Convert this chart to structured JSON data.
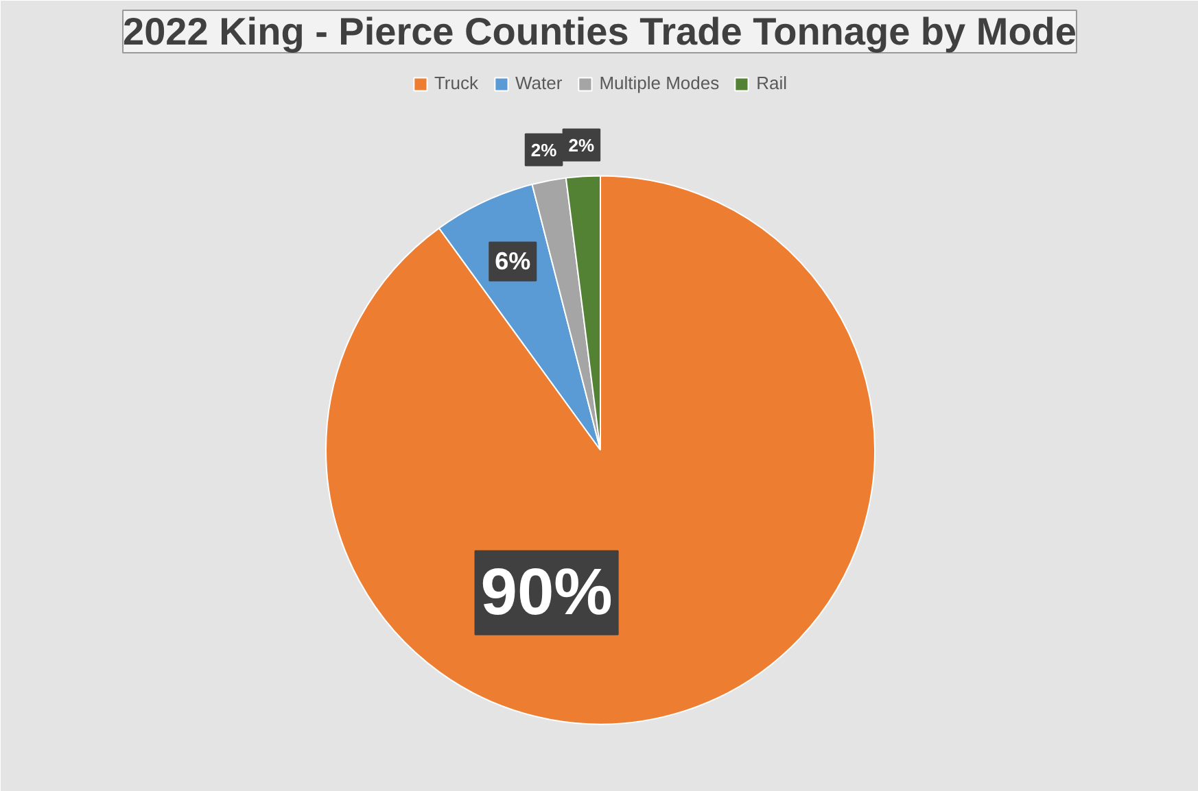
{
  "chart_data": {
    "type": "pie",
    "title": "2022 King - Pierce Counties Trade Tonnage by Mode",
    "categories": [
      "Truck",
      "Water",
      "Multiple Modes",
      "Rail"
    ],
    "values": [
      90,
      6,
      2,
      2
    ],
    "colors": [
      "#ed7d31",
      "#5b9bd5",
      "#a5a5a5",
      "#548235"
    ],
    "value_labels": [
      "90%",
      "6%",
      "2%",
      "2%"
    ],
    "legend": "top"
  }
}
